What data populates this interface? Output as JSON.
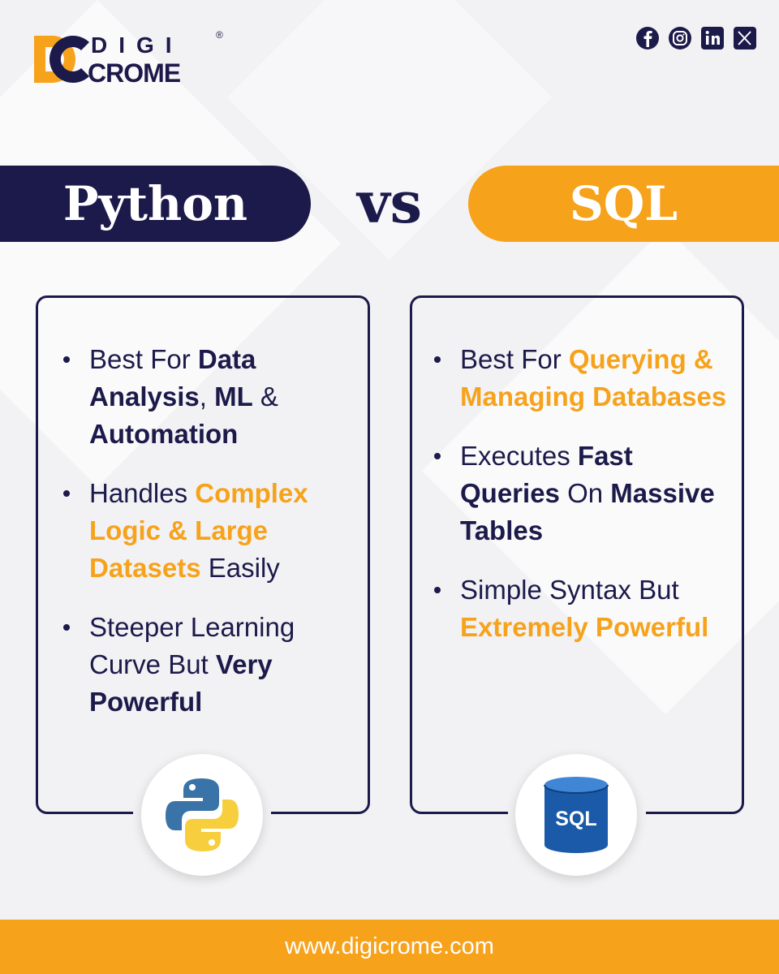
{
  "logo": {
    "top": "DIGI",
    "bottom": "CROME",
    "mark": "®"
  },
  "header": {
    "left": "Python",
    "middle": "vs",
    "right": "SQL"
  },
  "columns": [
    {
      "bullets": [
        {
          "segments": [
            {
              "text": "Best For ",
              "s": "r"
            },
            {
              "text": "Data Analysis",
              "s": "n"
            },
            {
              "text": ", ",
              "s": "r"
            },
            {
              "text": "ML",
              "s": "n"
            },
            {
              "text": " & ",
              "s": "r"
            },
            {
              "text": "Automation",
              "s": "n"
            }
          ]
        },
        {
          "segments": [
            {
              "text": "Handles ",
              "s": "r"
            },
            {
              "text": "Complex Logic & Large Datasets",
              "s": "o"
            },
            {
              "text": " Easily",
              "s": "r"
            }
          ]
        },
        {
          "segments": [
            {
              "text": "Steeper Learning Curve But ",
              "s": "r"
            },
            {
              "text": "Very Powerful",
              "s": "n"
            }
          ]
        }
      ]
    },
    {
      "bullets": [
        {
          "segments": [
            {
              "text": "Best For ",
              "s": "r"
            },
            {
              "text": "Querying & Managing Databases",
              "s": "o"
            }
          ]
        },
        {
          "segments": [
            {
              "text": "Executes ",
              "s": "r"
            },
            {
              "text": "Fast Queries",
              "s": "n"
            },
            {
              "text": " On ",
              "s": "r"
            },
            {
              "text": "Massive Tables",
              "s": "n"
            }
          ]
        },
        {
          "segments": [
            {
              "text": "Simple Syntax But ",
              "s": "r"
            },
            {
              "text": "Extremely Powerful",
              "s": "o"
            }
          ]
        }
      ]
    }
  ],
  "sql_icon_label": "SQL",
  "footer": "www.digicrome.com"
}
